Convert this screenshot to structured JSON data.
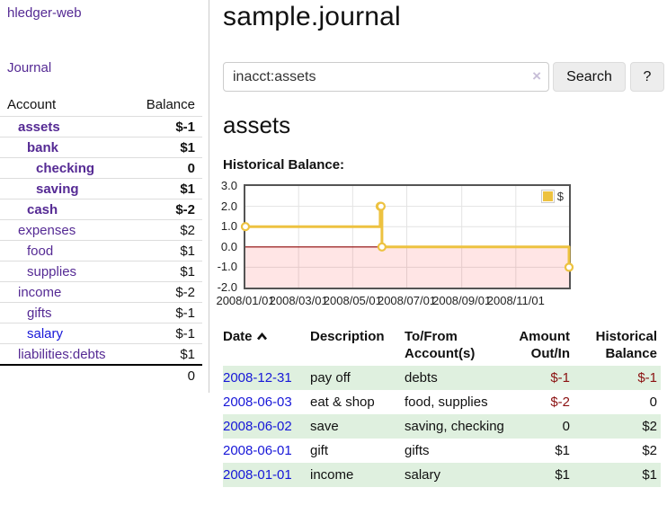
{
  "app": {
    "brand": "hledger-web"
  },
  "nav": {
    "journal": "Journal"
  },
  "sidebar": {
    "col_account": "Account",
    "col_balance": "Balance",
    "accounts": [
      {
        "name": "assets",
        "balance": "$-1"
      },
      {
        "name": "bank",
        "balance": "$1"
      },
      {
        "name": "checking",
        "balance": "0"
      },
      {
        "name": "saving",
        "balance": "$1"
      },
      {
        "name": "cash",
        "balance": "$-2"
      },
      {
        "name": "expenses",
        "balance": "$2"
      },
      {
        "name": "food",
        "balance": "$1"
      },
      {
        "name": "supplies",
        "balance": "$1"
      },
      {
        "name": "income",
        "balance": "$-2"
      },
      {
        "name": "gifts",
        "balance": "$-1"
      },
      {
        "name": "salary",
        "balance": "$-1"
      },
      {
        "name": "liabilities:debts",
        "balance": "$1"
      }
    ],
    "total": "0"
  },
  "header": {
    "title": "sample.journal"
  },
  "search": {
    "query": "inacct:assets",
    "clear": "×",
    "button_label": "Search",
    "help_label": "?"
  },
  "account_page": {
    "heading": "assets",
    "chart_title": "Historical Balance:"
  },
  "chart_data": {
    "type": "line",
    "title": "Historical Balance",
    "x_range": [
      "2008-01-01",
      "2008-12-31"
    ],
    "ylim": [
      -2.0,
      3.0
    ],
    "x_ticks": [
      "2008/01/01",
      "2008/03/01",
      "2008/05/01",
      "2008/07/01",
      "2008/09/01",
      "2008/11/01"
    ],
    "y_ticks": [
      "3.0",
      "2.0",
      "1.0",
      "0.0",
      "-1.0",
      "-2.0"
    ],
    "series": [
      {
        "name": "$",
        "step": true,
        "points": [
          [
            "2008-01-01",
            1
          ],
          [
            "2008-06-01",
            2
          ],
          [
            "2008-06-02",
            2
          ],
          [
            "2008-06-03",
            0
          ],
          [
            "2008-12-31",
            -1
          ]
        ]
      }
    ],
    "legend_position": "top-right",
    "grid": true,
    "negative_region_shaded": true,
    "line_color": "#edc240",
    "zero_line_color": "#8b0000",
    "negative_fill": "rgba(255,0,0,0.10)"
  },
  "register": {
    "columns": {
      "date": "Date",
      "description": "Description",
      "accounts": "To/From Account(s)",
      "amount": "Amount Out/In",
      "balance": "Historical Balance"
    },
    "rows": [
      {
        "date": "2008-12-31",
        "description": "pay off",
        "accounts": "debts",
        "amount": "$-1",
        "balance": "$-1"
      },
      {
        "date": "2008-06-03",
        "description": "eat & shop",
        "accounts": "food, supplies",
        "amount": "$-2",
        "balance": "0"
      },
      {
        "date": "2008-06-02",
        "description": "save",
        "accounts": "saving, checking",
        "amount": "0",
        "balance": "$2"
      },
      {
        "date": "2008-06-01",
        "description": "gift",
        "accounts": "gifts",
        "amount": "$1",
        "balance": "$2"
      },
      {
        "date": "2008-01-01",
        "description": "income",
        "accounts": "salary",
        "amount": "$1",
        "balance": "$1"
      }
    ]
  }
}
